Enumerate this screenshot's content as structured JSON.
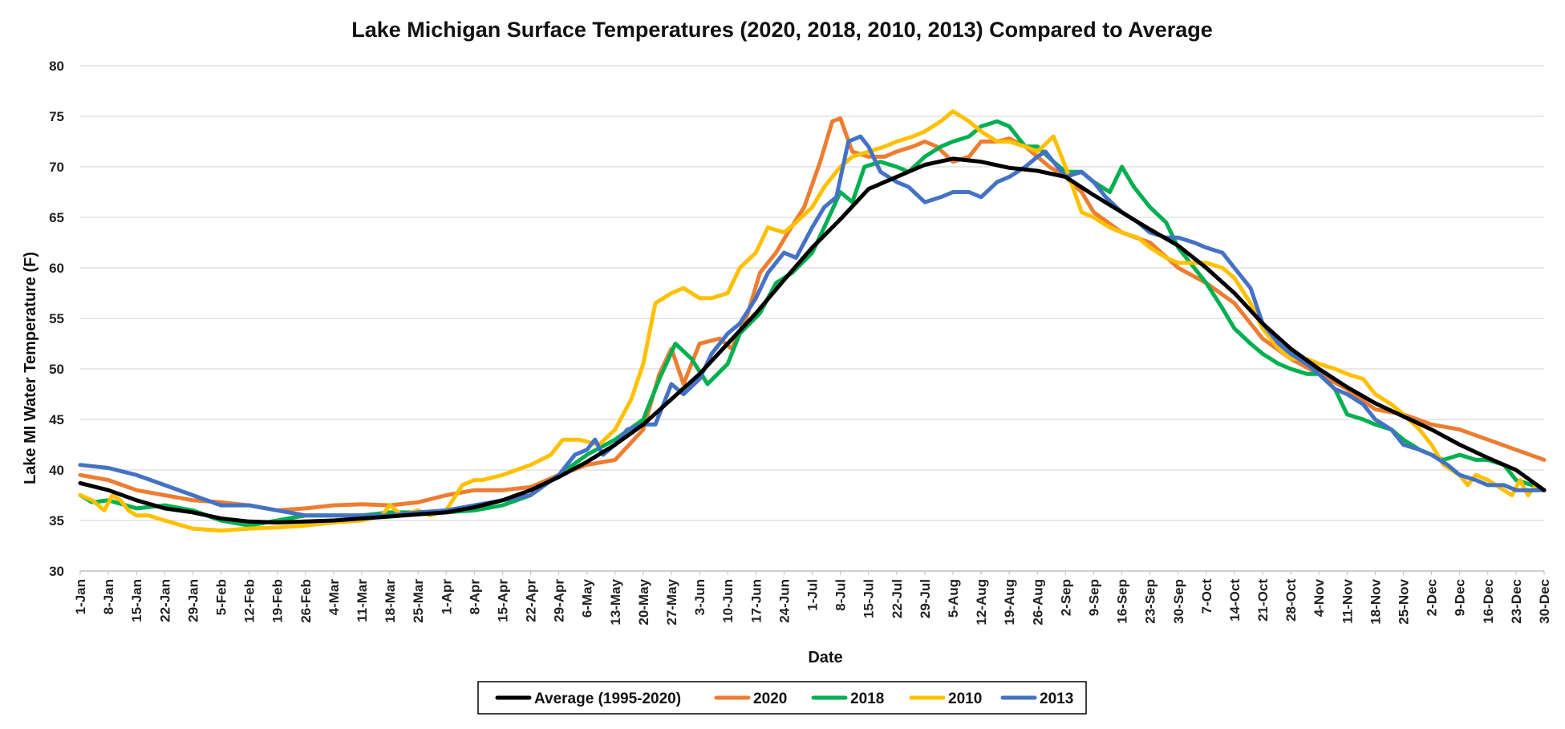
{
  "chart_data": {
    "type": "line",
    "title": "Lake Michigan Surface Temperatures (2020, 2018, 2010, 2013) Compared to Average",
    "xlabel": "Date",
    "ylabel": "Lake MI Water Temperature (F)",
    "ylim": [
      30,
      80
    ],
    "yticks": [
      "30",
      "35",
      "40",
      "45",
      "50",
      "55",
      "60",
      "65",
      "70",
      "75",
      "80"
    ],
    "xlim": [
      1,
      365
    ],
    "x_unit": "day of year",
    "categories": [
      "1-Jan",
      "8-Jan",
      "15-Jan",
      "22-Jan",
      "29-Jan",
      "5-Feb",
      "12-Feb",
      "19-Feb",
      "26-Feb",
      "4-Mar",
      "11-Mar",
      "18-Mar",
      "25-Mar",
      "1-Apr",
      "8-Apr",
      "15-Apr",
      "22-Apr",
      "29-Apr",
      "6-May",
      "13-May",
      "20-May",
      "27-May",
      "3-Jun",
      "10-Jun",
      "17-Jun",
      "24-Jun",
      "1-Jul",
      "8-Jul",
      "15-Jul",
      "22-Jul",
      "29-Jul",
      "5-Aug",
      "12-Aug",
      "19-Aug",
      "26-Aug",
      "2-Sep",
      "9-Sep",
      "16-Sep",
      "23-Sep",
      "30-Sep",
      "7-Oct",
      "14-Oct",
      "21-Oct",
      "28-Oct",
      "4-Nov",
      "11-Nov",
      "18-Nov",
      "25-Nov",
      "2-Dec",
      "9-Dec",
      "16-Dec",
      "23-Dec",
      "30-Dec"
    ],
    "grid": true,
    "legend_position": "bottom",
    "series": [
      {
        "name": "Average (1995-2020)",
        "color": "#000000",
        "x": [
          1,
          8,
          15,
          22,
          29,
          36,
          43,
          50,
          57,
          64,
          71,
          78,
          85,
          92,
          99,
          106,
          113,
          120,
          127,
          134,
          141,
          148,
          155,
          162,
          169,
          176,
          183,
          190,
          197,
          204,
          211,
          218,
          225,
          232,
          239,
          246,
          253,
          260,
          267,
          274,
          281,
          288,
          295,
          302,
          309,
          316,
          323,
          330,
          337,
          344,
          351,
          358,
          365
        ],
        "y": [
          38.7,
          38.0,
          37.0,
          36.2,
          35.8,
          35.2,
          34.9,
          34.8,
          34.9,
          35.0,
          35.2,
          35.4,
          35.6,
          35.8,
          36.3,
          37.0,
          38.0,
          39.3,
          40.8,
          42.5,
          44.5,
          47.0,
          49.5,
          52.5,
          55.5,
          58.8,
          62.0,
          64.8,
          67.8,
          69.0,
          70.2,
          70.8,
          70.5,
          69.9,
          69.6,
          69.0,
          67.2,
          65.5,
          63.8,
          62.2,
          60.0,
          57.5,
          54.5,
          52.0,
          50.0,
          48.2,
          46.6,
          45.3,
          44.0,
          42.5,
          41.2,
          40.0,
          38.0
        ]
      },
      {
        "name": "2020",
        "color": "#ED7D31",
        "x": [
          1,
          8,
          15,
          22,
          29,
          36,
          43,
          50,
          57,
          64,
          71,
          78,
          85,
          92,
          99,
          106,
          113,
          120,
          127,
          134,
          141,
          145,
          148,
          151,
          155,
          160,
          163,
          167,
          170,
          174,
          177,
          181,
          185,
          188,
          190,
          193,
          197,
          201,
          204,
          208,
          211,
          214,
          218,
          222,
          225,
          229,
          232,
          236,
          239,
          242,
          246,
          250,
          253,
          260,
          267,
          274,
          281,
          288,
          295,
          302,
          309,
          316,
          323,
          330,
          337,
          344,
          351,
          358,
          365
        ],
        "y": [
          39.5,
          39.0,
          38.0,
          37.5,
          37.0,
          36.8,
          36.5,
          36.0,
          36.2,
          36.5,
          36.6,
          36.5,
          36.8,
          37.5,
          38.0,
          38.0,
          38.3,
          39.5,
          40.5,
          41.0,
          44.0,
          49.5,
          52.0,
          48.5,
          52.5,
          53.0,
          52.0,
          55.5,
          59.5,
          61.5,
          63.5,
          66.0,
          70.5,
          74.5,
          74.8,
          71.5,
          71.0,
          71.0,
          71.5,
          72.0,
          72.5,
          72.0,
          70.5,
          71.0,
          72.5,
          72.5,
          72.8,
          72.0,
          71.0,
          70.0,
          69.0,
          67.5,
          65.5,
          63.5,
          62.5,
          60.0,
          58.5,
          56.5,
          53.0,
          51.0,
          49.5,
          48.0,
          46.0,
          45.5,
          44.5,
          44.0,
          43.0,
          42.0,
          41.0
        ]
      },
      {
        "name": "2018",
        "color": "#00B050",
        "x": [
          1,
          4,
          8,
          15,
          22,
          29,
          36,
          43,
          50,
          57,
          64,
          71,
          78,
          85,
          92,
          99,
          106,
          113,
          120,
          127,
          134,
          141,
          145,
          149,
          153,
          157,
          162,
          165,
          170,
          174,
          178,
          183,
          186,
          190,
          193,
          196,
          200,
          204,
          207,
          211,
          215,
          218,
          222,
          225,
          229,
          232,
          236,
          239,
          243,
          246,
          250,
          253,
          257,
          260,
          263,
          267,
          271,
          274,
          278,
          281,
          285,
          288,
          292,
          295,
          299,
          302,
          306,
          309,
          313,
          316,
          320,
          323,
          327,
          330,
          334,
          337,
          340,
          344,
          348,
          351,
          355,
          358,
          362,
          365
        ],
        "y": [
          37.5,
          36.8,
          37.0,
          36.2,
          36.5,
          36.0,
          35.0,
          34.5,
          35.0,
          35.5,
          35.5,
          35.5,
          35.8,
          35.8,
          35.8,
          36.0,
          36.5,
          37.5,
          39.5,
          41.5,
          43.0,
          45.0,
          49.0,
          52.5,
          51.0,
          48.5,
          50.5,
          53.5,
          55.5,
          58.5,
          59.5,
          61.5,
          64.0,
          67.5,
          66.5,
          70.0,
          70.5,
          70.0,
          69.5,
          71.0,
          72.0,
          72.5,
          73.0,
          74.0,
          74.5,
          74.0,
          72.0,
          72.0,
          70.5,
          69.5,
          69.5,
          68.5,
          67.5,
          70.0,
          68.0,
          66.0,
          64.5,
          62.0,
          60.0,
          58.5,
          56.0,
          54.0,
          52.5,
          51.5,
          50.5,
          50.0,
          49.5,
          49.5,
          48.0,
          45.5,
          45.0,
          44.5,
          44.0,
          43.0,
          42.0,
          41.5,
          41.0,
          41.5,
          41.0,
          41.0,
          40.5,
          39.0,
          38.5,
          38.0
        ]
      },
      {
        "name": "2010",
        "color": "#FFC000",
        "x": [
          1,
          4,
          7,
          9,
          11,
          13,
          15,
          18,
          22,
          29,
          36,
          43,
          50,
          57,
          64,
          71,
          76,
          78,
          81,
          85,
          88,
          92,
          96,
          99,
          101,
          106,
          113,
          118,
          121,
          125,
          130,
          134,
          138,
          141,
          144,
          148,
          151,
          155,
          158,
          162,
          165,
          169,
          172,
          176,
          179,
          183,
          186,
          190,
          193,
          197,
          201,
          204,
          208,
          211,
          215,
          218,
          222,
          225,
          229,
          232,
          236,
          239,
          243,
          246,
          250,
          253,
          257,
          260,
          264,
          267,
          271,
          274,
          278,
          281,
          285,
          288,
          292,
          295,
          299,
          302,
          306,
          309,
          313,
          316,
          320,
          323,
          327,
          330,
          334,
          337,
          340,
          342,
          344,
          346,
          348,
          351,
          353,
          355,
          357,
          359,
          361,
          363,
          365
        ],
        "y": [
          37.5,
          37.0,
          36.0,
          37.5,
          37.0,
          36.0,
          35.5,
          35.5,
          35.0,
          34.2,
          34.0,
          34.2,
          34.3,
          34.5,
          34.8,
          35.0,
          35.5,
          36.5,
          35.5,
          36.0,
          35.5,
          36.0,
          38.5,
          39.0,
          39.0,
          39.5,
          40.5,
          41.5,
          43.0,
          43.0,
          42.5,
          44.0,
          47.0,
          50.5,
          56.5,
          57.5,
          58.0,
          57.0,
          57.0,
          57.5,
          60.0,
          61.5,
          64.0,
          63.5,
          64.5,
          66.0,
          68.0,
          70.0,
          71.0,
          71.5,
          72.0,
          72.5,
          73.0,
          73.5,
          74.5,
          75.5,
          74.5,
          73.5,
          72.5,
          72.5,
          72.0,
          71.5,
          73.0,
          70.0,
          65.5,
          65.0,
          64.0,
          63.5,
          63.0,
          62.0,
          61.0,
          60.5,
          60.5,
          60.5,
          60.0,
          59.0,
          56.5,
          54.0,
          52.0,
          51.0,
          51.0,
          50.5,
          50.0,
          49.5,
          49.0,
          47.5,
          46.5,
          45.5,
          44.0,
          42.5,
          40.5,
          40.0,
          39.5,
          38.5,
          39.5,
          39.0,
          38.5,
          38.0,
          37.5,
          39.0,
          37.5,
          38.5,
          38.0
        ]
      },
      {
        "name": "2013",
        "color": "#4472C4",
        "x": [
          1,
          8,
          15,
          22,
          29,
          36,
          43,
          50,
          57,
          64,
          71,
          78,
          85,
          92,
          99,
          106,
          113,
          120,
          124,
          127,
          129,
          131,
          134,
          137,
          141,
          144,
          148,
          151,
          155,
          158,
          162,
          165,
          169,
          172,
          176,
          179,
          183,
          186,
          189,
          192,
          195,
          197,
          200,
          204,
          207,
          211,
          215,
          218,
          222,
          225,
          229,
          232,
          236,
          239,
          241,
          243,
          246,
          250,
          253,
          256,
          260,
          264,
          267,
          271,
          274,
          278,
          281,
          285,
          288,
          292,
          295,
          299,
          302,
          306,
          309,
          313,
          316,
          320,
          323,
          327,
          330,
          334,
          337,
          341,
          344,
          348,
          351,
          355,
          358,
          362,
          365
        ],
        "y": [
          40.5,
          40.2,
          39.5,
          38.5,
          37.5,
          36.5,
          36.5,
          36.0,
          35.5,
          35.5,
          35.5,
          35.5,
          35.8,
          36.0,
          36.5,
          37.0,
          37.5,
          39.5,
          41.5,
          42.0,
          43.0,
          41.5,
          42.5,
          44.0,
          44.5,
          44.5,
          48.5,
          47.5,
          49.0,
          51.5,
          53.5,
          54.5,
          57.0,
          59.5,
          61.5,
          61.0,
          64.0,
          66.0,
          67.0,
          72.5,
          73.0,
          72.0,
          69.5,
          68.5,
          68.0,
          66.5,
          67.0,
          67.5,
          67.5,
          67.0,
          68.5,
          69.0,
          70.0,
          71.0,
          71.5,
          70.5,
          69.0,
          69.5,
          68.5,
          67.0,
          65.5,
          64.5,
          63.5,
          63.0,
          63.0,
          62.5,
          62.0,
          61.5,
          60.0,
          58.0,
          54.5,
          52.5,
          51.5,
          50.5,
          49.5,
          48.0,
          47.5,
          46.5,
          45.0,
          44.0,
          42.5,
          42.0,
          41.5,
          40.5,
          39.5,
          39.0,
          38.5,
          38.5,
          38.0,
          38.0,
          38.0
        ]
      }
    ]
  }
}
